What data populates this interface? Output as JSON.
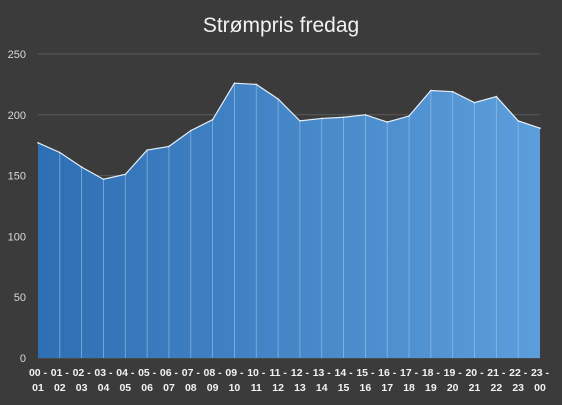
{
  "chart_data": {
    "type": "area",
    "title": "Strømpris fredag",
    "xlabel": "",
    "ylabel": "",
    "ylim": [
      0,
      250
    ],
    "yticks": [
      0,
      50,
      100,
      150,
      200,
      250
    ],
    "grid": true,
    "legend": "none",
    "categories": [
      [
        "00 -",
        "01"
      ],
      [
        "01 -",
        "02"
      ],
      [
        "02 -",
        "03"
      ],
      [
        "03 -",
        "04"
      ],
      [
        "04 -",
        "05"
      ],
      [
        "05 -",
        "06"
      ],
      [
        "06 -",
        "07"
      ],
      [
        "07 -",
        "08"
      ],
      [
        "08 -",
        "09"
      ],
      [
        "09 -",
        "10"
      ],
      [
        "10 -",
        "11"
      ],
      [
        "11 -",
        "12"
      ],
      [
        "12 -",
        "13"
      ],
      [
        "13 -",
        "14"
      ],
      [
        "14 -",
        "15"
      ],
      [
        "15 -",
        "16"
      ],
      [
        "16 -",
        "17"
      ],
      [
        "17 -",
        "18"
      ],
      [
        "18 -",
        "19"
      ],
      [
        "19 -",
        "20"
      ],
      [
        "20 -",
        "21"
      ],
      [
        "21 -",
        "22"
      ],
      [
        "22 -",
        "23"
      ],
      [
        "23 -",
        "00"
      ]
    ],
    "values": [
      177,
      169,
      157,
      147,
      151,
      171,
      174,
      187,
      196,
      226,
      225,
      213,
      195,
      197,
      198,
      200,
      194,
      199,
      220,
      219,
      210,
      215,
      195,
      189
    ],
    "colors": {
      "background": "#3b3b3b",
      "area_start": "#2e6fb4",
      "area_end": "#5c9edb",
      "line": "#e6eef8",
      "grid": "#5a5a5a",
      "divider": "#9ec4ea"
    }
  }
}
